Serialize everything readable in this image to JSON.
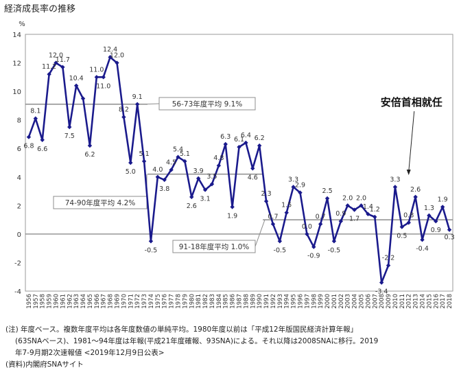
{
  "title": "経済成長率の推移",
  "ylabel": "%",
  "chart_data": {
    "type": "line",
    "title": "経済成長率の推移",
    "ylabel": "%",
    "xlabel": "",
    "ylim": [
      -4,
      14
    ],
    "yticks": [
      -4,
      -2,
      0,
      2,
      4,
      6,
      8,
      10,
      12,
      14
    ],
    "grid": false,
    "series_color": "#1a1a8c",
    "categories": [
      "1956",
      "1957",
      "1958",
      "1959",
      "1960",
      "1961",
      "1962",
      "1963",
      "1964",
      "1965",
      "1966",
      "1967",
      "1968",
      "1969",
      "1970",
      "1971",
      "1972",
      "1973",
      "1974",
      "1975",
      "1976",
      "1977",
      "1978",
      "1979",
      "1980",
      "1981",
      "1982",
      "1983",
      "1984",
      "1985",
      "1986",
      "1987",
      "1988",
      "1989",
      "1990",
      "1991",
      "1992",
      "1993",
      "1994",
      "1995",
      "1996",
      "1997",
      "1998",
      "1999",
      "2000",
      "2001",
      "2002",
      "2003",
      "2004",
      "2005",
      "2006",
      "2007",
      "2008",
      "2009",
      "2010",
      "2011",
      "2012",
      "2013",
      "2014",
      "2015",
      "2016",
      "2017",
      "2018"
    ],
    "values": [
      6.8,
      8.1,
      6.6,
      11.2,
      12.0,
      11.7,
      7.5,
      10.4,
      9.5,
      6.2,
      11.0,
      11.0,
      12.4,
      12.0,
      8.2,
      5.0,
      9.1,
      5.1,
      -0.5,
      4.0,
      3.8,
      4.5,
      5.4,
      5.1,
      2.6,
      3.9,
      3.1,
      3.5,
      4.8,
      6.3,
      1.9,
      6.1,
      6.4,
      4.6,
      6.2,
      2.3,
      0.7,
      -0.5,
      1.5,
      3.3,
      2.9,
      0.0,
      -0.9,
      0.7,
      2.5,
      -0.5,
      0.9,
      2.0,
      1.7,
      2.0,
      1.4,
      1.2,
      -3.4,
      -2.2,
      3.3,
      0.5,
      0.8,
      2.6,
      -0.4,
      1.3,
      0.9,
      1.9,
      0.3
    ],
    "labels": [
      {
        "i": 0,
        "text": "6.8"
      },
      {
        "i": 1,
        "text": "8.1"
      },
      {
        "i": 2,
        "text": "6.6"
      },
      {
        "i": 3,
        "text": "11.2"
      },
      {
        "i": 4,
        "text": "12.0"
      },
      {
        "i": 5,
        "text": "11.7"
      },
      {
        "i": 6,
        "text": "7.5"
      },
      {
        "i": 7,
        "text": "10.4"
      },
      {
        "i": 9,
        "text": "6.2"
      },
      {
        "i": 10,
        "text": "11.0"
      },
      {
        "i": 12,
        "text": "12.4"
      },
      {
        "i": 13,
        "text": "12.0"
      },
      {
        "i": 11,
        "text": "11.0"
      },
      {
        "i": 14,
        "text": "8.2"
      },
      {
        "i": 15,
        "text": "5.0"
      },
      {
        "i": 16,
        "text": "9.1"
      },
      {
        "i": 17,
        "text": "5.1"
      },
      {
        "i": 18,
        "text": "-0.5"
      },
      {
        "i": 19,
        "text": "4.0"
      },
      {
        "i": 20,
        "text": "3.8"
      },
      {
        "i": 21,
        "text": "4.5"
      },
      {
        "i": 22,
        "text": "5.4"
      },
      {
        "i": 23,
        "text": "5.1"
      },
      {
        "i": 24,
        "text": "2.6"
      },
      {
        "i": 25,
        "text": "3.9"
      },
      {
        "i": 26,
        "text": "3.1"
      },
      {
        "i": 28,
        "text": "4.8"
      },
      {
        "i": 29,
        "text": "6.3"
      },
      {
        "i": 30,
        "text": "1.9"
      },
      {
        "i": 31,
        "text": "6.1"
      },
      {
        "i": 32,
        "text": "6.4"
      },
      {
        "i": 33,
        "text": "4.6"
      },
      {
        "i": 34,
        "text": "6.2"
      },
      {
        "i": 27,
        "text": "3.5"
      },
      {
        "i": 35,
        "text": "2.3"
      },
      {
        "i": 36,
        "text": "0.7"
      },
      {
        "i": 37,
        "text": "-0.5"
      },
      {
        "i": 38,
        "text": "1.5"
      },
      {
        "i": 39,
        "text": "3.3"
      },
      {
        "i": 40,
        "text": "2.9"
      },
      {
        "i": 41,
        "text": "0.0"
      },
      {
        "i": 42,
        "text": "-0.9"
      },
      {
        "i": 43,
        "text": "0.7"
      },
      {
        "i": 44,
        "text": "2.5"
      },
      {
        "i": 45,
        "text": "-0.5"
      },
      {
        "i": 46,
        "text": "0.9"
      },
      {
        "i": 47,
        "text": "2.0"
      },
      {
        "i": 48,
        "text": "1.7"
      },
      {
        "i": 49,
        "text": "2.0"
      },
      {
        "i": 50,
        "text": "1.4"
      },
      {
        "i": 51,
        "text": "1.2"
      },
      {
        "i": 52,
        "text": "-3.4"
      },
      {
        "i": 53,
        "text": "-2.2"
      },
      {
        "i": 54,
        "text": "3.3"
      },
      {
        "i": 55,
        "text": "0.5"
      },
      {
        "i": 56,
        "text": "0.8"
      },
      {
        "i": 57,
        "text": "2.6"
      },
      {
        "i": 58,
        "text": "-0.4"
      },
      {
        "i": 59,
        "text": "1.3"
      },
      {
        "i": 60,
        "text": "0.9"
      },
      {
        "i": 61,
        "text": "1.9"
      },
      {
        "i": 62,
        "text": "0.3"
      }
    ],
    "averages": [
      {
        "label": "56-73年度平均 9.1%",
        "value": 9.1,
        "from": "1956",
        "to": "1973"
      },
      {
        "label": "74-90年度平均 4.2%",
        "value": 4.2,
        "from": "1974",
        "to": "1990"
      },
      {
        "label": "91-18年度平均 1.0%",
        "value": 1.0,
        "from": "1991",
        "to": "2018"
      }
    ],
    "annotation": {
      "text": "安倍首相就任",
      "at": "2012"
    }
  },
  "notes": [
    "(注) 年度ベース。複数年度平均は各年度数値の単純平均。1980年度以前は「平成12年版国民経済計算年報」",
    "(63SNAベース)、1981～94年度は年報(平成21年度確報、93SNA)による。それ以降は2008SNAに移行。2019",
    "年7-9月期2次速報値 <2019年12月9日公表>",
    "(資料)内閣府SNAサイト"
  ]
}
